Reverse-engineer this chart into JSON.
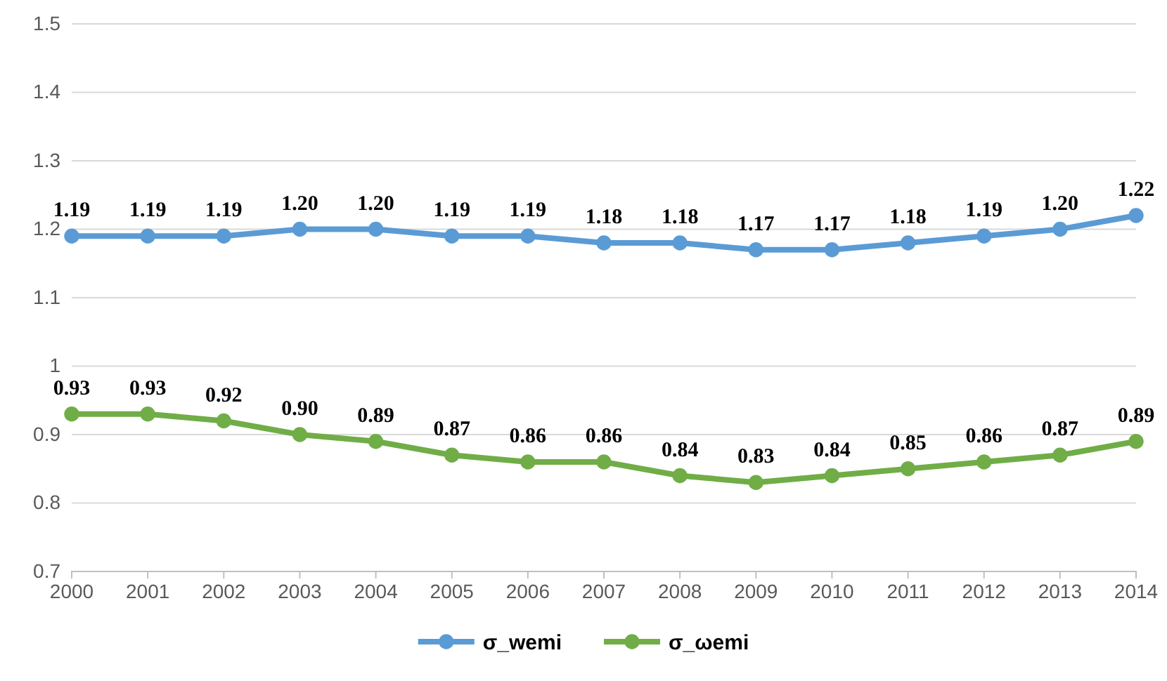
{
  "chart_data": {
    "type": "line",
    "categories": [
      "2000",
      "2001",
      "2002",
      "2003",
      "2004",
      "2005",
      "2006",
      "2007",
      "2008",
      "2009",
      "2010",
      "2011",
      "2012",
      "2013",
      "2014"
    ],
    "series": [
      {
        "name": "σ_wemi",
        "color": "#5b9bd5",
        "values": [
          1.19,
          1.19,
          1.19,
          1.2,
          1.2,
          1.19,
          1.19,
          1.18,
          1.18,
          1.17,
          1.17,
          1.18,
          1.19,
          1.2,
          1.22
        ],
        "value_labels": [
          "1.19",
          "1.19",
          "1.19",
          "1.20",
          "1.20",
          "1.19",
          "1.19",
          "1.18",
          "1.18",
          "1.17",
          "1.17",
          "1.18",
          "1.19",
          "1.20",
          "1.22"
        ]
      },
      {
        "name": "σ_ωemi",
        "color": "#70ad47",
        "values": [
          0.93,
          0.93,
          0.92,
          0.9,
          0.89,
          0.87,
          0.86,
          0.86,
          0.84,
          0.83,
          0.84,
          0.85,
          0.86,
          0.87,
          0.89
        ],
        "value_labels": [
          "0.93",
          "0.93",
          "0.92",
          "0.90",
          "0.89",
          "0.87",
          "0.86",
          "0.86",
          "0.84",
          "0.83",
          "0.84",
          "0.85",
          "0.86",
          "0.87",
          "0.89"
        ]
      }
    ],
    "ylim": [
      0.7,
      1.5
    ],
    "yticks": [
      0.7,
      0.8,
      0.9,
      {
        "value": 1,
        "label": "1"
      },
      1.1,
      1.2,
      1.3,
      1.4,
      1.5
    ],
    "grid": "y",
    "legend": "bottom",
    "marker": "circle",
    "line_style": "solid"
  }
}
